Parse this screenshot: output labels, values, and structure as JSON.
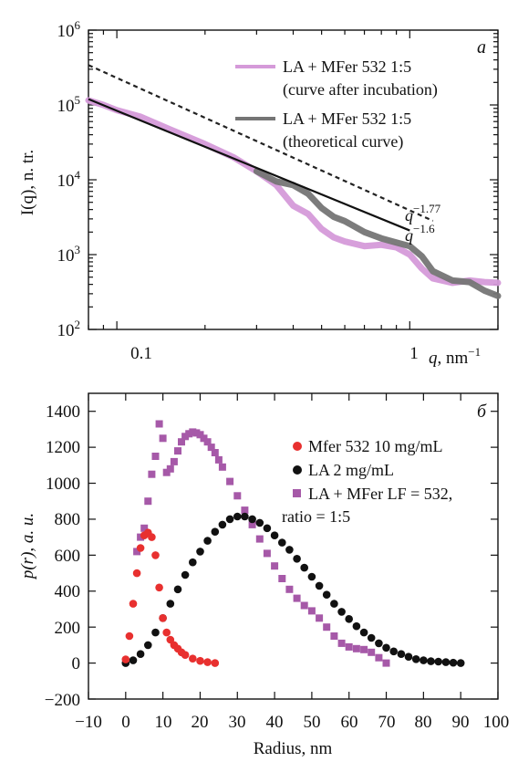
{
  "chart_data": [
    {
      "type": "line",
      "panel_label": "a",
      "xlabel_var": "q",
      "xlabel_unit": "nm",
      "xlabel_unit_exp": "−1",
      "ylabel": "I(q), n. tr.",
      "x_scale": "log",
      "y_scale": "log",
      "xlim": [
        0.08,
        2.0
      ],
      "ylim": [
        100,
        1000000
      ],
      "x_ticks": [
        {
          "value": 0.1,
          "label": "0.1"
        },
        {
          "value": 1,
          "label": "1"
        }
      ],
      "y_ticks": [
        {
          "value": 100,
          "base": "10",
          "exp": "2"
        },
        {
          "value": 1000,
          "base": "10",
          "exp": "3"
        },
        {
          "value": 10000,
          "base": "10",
          "exp": "4"
        },
        {
          "value": 100000,
          "base": "10",
          "exp": "5"
        },
        {
          "value": 1000000,
          "base": "10",
          "exp": "6"
        }
      ],
      "legend_placement": "top-right",
      "series": [
        {
          "name": "LA + MFer 532 1:5",
          "name_line2": "(curve after incubation)",
          "color": "#d59ad9",
          "x": [
            0.08,
            0.09,
            0.1,
            0.12,
            0.15,
            0.2,
            0.25,
            0.3,
            0.35,
            0.4,
            0.45,
            0.5,
            0.55,
            0.6,
            0.7,
            0.8,
            0.9,
            1.0,
            1.1,
            1.2,
            1.4,
            1.6,
            1.8,
            2.0
          ],
          "y": [
            115000,
            100000,
            85000,
            70000,
            48000,
            30000,
            20000,
            13000,
            8500,
            4500,
            3500,
            2200,
            1700,
            1500,
            1300,
            1350,
            1250,
            1000,
            650,
            480,
            420,
            450,
            430,
            420
          ]
        },
        {
          "name": "LA + MFer 532 1:5",
          "name_line2": "(theoretical curve)",
          "color": "#757575",
          "x": [
            0.3,
            0.35,
            0.4,
            0.45,
            0.5,
            0.55,
            0.6,
            0.7,
            0.8,
            0.9,
            1.0,
            1.1,
            1.2,
            1.4,
            1.6,
            1.8,
            2.0
          ],
          "y": [
            13000,
            9500,
            8500,
            6500,
            4200,
            3200,
            2800,
            2000,
            1650,
            1450,
            1300,
            950,
            600,
            450,
            430,
            330,
            280
          ]
        },
        {
          "name": "q^-1.77",
          "color": "#222222",
          "dashed": true,
          "power_law": {
            "a": 3900,
            "exponent": -1.77
          },
          "x_range": [
            0.08,
            1.2
          ]
        },
        {
          "name": "q^-1.6",
          "color": "#111111",
          "dashed": false,
          "power_law": {
            "a": 2100,
            "exponent": -1.6
          },
          "x_range": [
            0.08,
            1.0
          ]
        }
      ],
      "annotations": [
        {
          "base": "q",
          "exp": "−1.77"
        },
        {
          "base": "q",
          "exp": "−1.6"
        }
      ]
    },
    {
      "type": "scatter",
      "panel_label": "б",
      "xlabel": "Radius, nm",
      "ylabel": "p(r), a. u.",
      "xlim": [
        -10,
        100
      ],
      "ylim": [
        -200,
        1500
      ],
      "x_ticks": [
        -10,
        0,
        10,
        20,
        30,
        40,
        50,
        60,
        70,
        80,
        90,
        100
      ],
      "x_tick_labels": [
        "−10",
        "0",
        "10",
        "20",
        "30",
        "40",
        "50",
        "60",
        "70",
        "80",
        "90",
        "100"
      ],
      "y_ticks": [
        -200,
        0,
        200,
        400,
        600,
        800,
        1000,
        1200,
        1400
      ],
      "y_tick_labels": [
        "−200",
        "0",
        "200",
        "400",
        "600",
        "800",
        "1000",
        "1200",
        "1400"
      ],
      "legend_placement": "top-right",
      "series": [
        {
          "name": "Mfer 532 10 mg/mL",
          "color": "#e8302f",
          "marker": "circle",
          "x": [
            0,
            1,
            2,
            3,
            4,
            5,
            6,
            7,
            8,
            9,
            10,
            11,
            12,
            13,
            14,
            15,
            16,
            18,
            20,
            22,
            24
          ],
          "y": [
            20,
            150,
            330,
            500,
            640,
            710,
            725,
            700,
            600,
            420,
            250,
            170,
            130,
            100,
            80,
            60,
            45,
            25,
            12,
            5,
            0
          ]
        },
        {
          "name": "LA 2 mg/mL",
          "color": "#111111",
          "marker": "circle",
          "x": [
            0,
            2,
            4,
            6,
            8,
            10,
            12,
            14,
            16,
            18,
            20,
            22,
            24,
            26,
            28,
            30,
            32,
            34,
            36,
            38,
            40,
            42,
            44,
            46,
            48,
            50,
            52,
            54,
            56,
            58,
            60,
            62,
            64,
            66,
            68,
            70,
            72,
            74,
            76,
            78,
            80,
            82,
            84,
            86,
            88,
            90
          ],
          "y": [
            0,
            15,
            50,
            100,
            170,
            250,
            330,
            410,
            490,
            560,
            620,
            680,
            730,
            770,
            800,
            815,
            815,
            800,
            780,
            750,
            710,
            670,
            630,
            580,
            530,
            480,
            430,
            380,
            330,
            285,
            245,
            205,
            170,
            140,
            110,
            85,
            65,
            50,
            35,
            22,
            15,
            10,
            8,
            5,
            2,
            0
          ]
        },
        {
          "name": "LA + MFer LF = 532,",
          "name_line2": "ratio = 1:5",
          "color": "#a659a8",
          "marker": "square",
          "x": [
            3,
            4,
            5,
            6,
            7,
            8,
            9,
            10,
            11,
            12,
            13,
            14,
            15,
            16,
            17,
            18,
            19,
            20,
            21,
            22,
            23,
            24,
            25,
            26,
            28,
            30,
            32,
            34,
            36,
            38,
            40,
            42,
            44,
            46,
            48,
            50,
            52,
            54,
            56,
            58,
            60,
            62,
            64,
            66,
            68,
            70
          ],
          "y": [
            620,
            700,
            750,
            900,
            1050,
            1150,
            1330,
            1250,
            1060,
            1080,
            1120,
            1180,
            1230,
            1260,
            1275,
            1285,
            1280,
            1270,
            1250,
            1230,
            1200,
            1170,
            1130,
            1090,
            1010,
            930,
            850,
            770,
            690,
            610,
            540,
            470,
            410,
            360,
            320,
            290,
            250,
            200,
            150,
            110,
            90,
            80,
            75,
            60,
            30,
            0
          ]
        }
      ]
    }
  ]
}
